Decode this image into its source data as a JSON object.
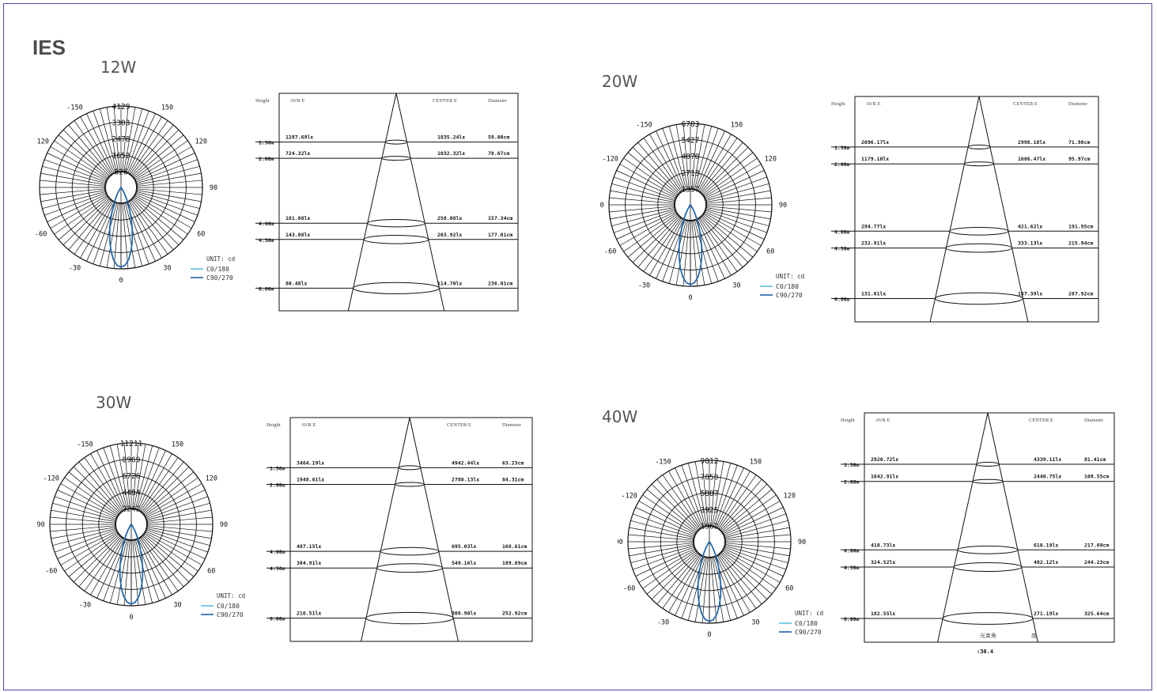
{
  "page": {
    "title": "IES"
  },
  "legend": {
    "unit": "UNIT: cd",
    "c0": "C0/180",
    "c90": "C90/270",
    "c0_color": "#5bc0de",
    "c90_color": "#1f5fa8"
  },
  "angle_labels": [
    "0",
    "30",
    "60",
    "90",
    "120",
    "150",
    "-150",
    "-120",
    "-90",
    "-60",
    "-30"
  ],
  "cone_headers": {
    "height": "Height",
    "avr": "AVR E",
    "center": "CENTER E",
    "diameter": "Diameter"
  },
  "panels": [
    {
      "watt": "12W",
      "ring_values": [
        "4129",
        "3303",
        "2478",
        "1652",
        "826"
      ],
      "rows": [
        {
          "h": "1.50m",
          "avr": "1287.69lx",
          "center": "1835.24lx",
          "dia": "59.00cm"
        },
        {
          "h": "2.00m",
          "avr": "724.32lx",
          "center": "1032.32lx",
          "dia": "78.67cm"
        },
        {
          "h": "4.00m",
          "avr": "181.08lx",
          "center": "258.08lx",
          "dia": "157.34cm"
        },
        {
          "h": "4.50m",
          "avr": "143.08lx",
          "center": "203.92lx",
          "dia": "177.01cm"
        },
        {
          "h": "6.00m",
          "avr": "80.48lx",
          "center": "114.70lx",
          "dia": "236.01cm"
        }
      ]
    },
    {
      "watt": "20W",
      "ring_values": [
        "6783",
        "5427",
        "4070",
        "2713",
        "1357"
      ],
      "rows": [
        {
          "h": "1.50m",
          "avr": "2096.17lx",
          "center": "2998.18lx",
          "dia": "71.98cm"
        },
        {
          "h": "2.00m",
          "avr": "1179.10lx",
          "center": "1686.47lx",
          "dia": "95.97cm"
        },
        {
          "h": "4.00m",
          "avr": "294.77lx",
          "center": "421.62lx",
          "dia": "191.95cm"
        },
        {
          "h": "4.50m",
          "avr": "232.91lx",
          "center": "333.13lx",
          "dia": "215.94cm"
        },
        {
          "h": "6.00m",
          "avr": "131.01lx",
          "center": "187.39lx",
          "dia": "287.92cm"
        }
      ]
    },
    {
      "watt": "30W",
      "ring_values": [
        "11211",
        "8969",
        "6726",
        "4484",
        "2242"
      ],
      "rows": [
        {
          "h": "1.50m",
          "avr": "3464.19lx",
          "center": "4942.44lx",
          "dia": "63.23cm"
        },
        {
          "h": "2.00m",
          "avr": "1948.61lx",
          "center": "2780.13lx",
          "dia": "84.31cm"
        },
        {
          "h": "4.00m",
          "avr": "487.15lx",
          "center": "695.03lx",
          "dia": "168.61cm"
        },
        {
          "h": "4.50m",
          "avr": "384.91lx",
          "center": "549.16lx",
          "dia": "189.69cm"
        },
        {
          "h": "6.00m",
          "avr": "216.51lx",
          "center": "308.90lx",
          "dia": "252.92cm"
        }
      ]
    },
    {
      "watt": "40W",
      "ring_values": [
        "9812",
        "7850",
        "5887",
        "3925",
        "1962"
      ],
      "rows": [
        {
          "h": "1.50m",
          "avr": "2920.72lx",
          "center": "4339.11lx",
          "dia": "81.41cm"
        },
        {
          "h": "2.00m",
          "avr": "1642.91lx",
          "center": "2440.75lx",
          "dia": "108.55cm"
        },
        {
          "h": "4.00m",
          "avr": "410.73lx",
          "center": "610.19lx",
          "dia": "217.09cm"
        },
        {
          "h": "4.50m",
          "avr": "324.52lx",
          "center": "482.12lx",
          "dia": "244.23cm"
        },
        {
          "h": "6.00m",
          "avr": "182.55lx",
          "center": "271.19lx",
          "dia": "325.64cm"
        }
      ],
      "footnote": "光束角",
      "footnote2": "度",
      "footnote_value": ":30.4"
    }
  ]
}
